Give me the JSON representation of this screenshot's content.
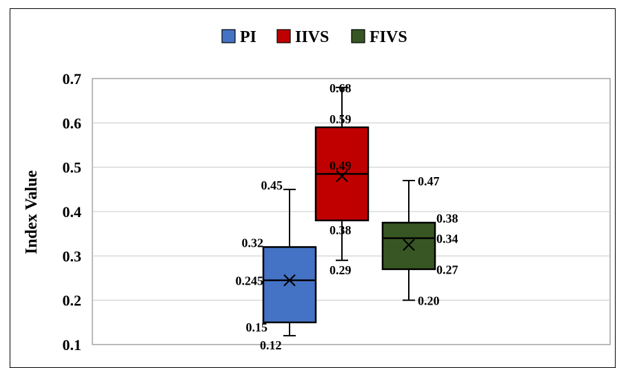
{
  "chart_data": {
    "type": "box",
    "title": "",
    "xlabel": "",
    "ylabel": "Index Value",
    "ylim": [
      0.1,
      0.7
    ],
    "yticks": [
      "0.1",
      "0.2",
      "0.3",
      "0.4",
      "0.5",
      "0.6",
      "0.7"
    ],
    "grid": "horizontal",
    "legend_position": "top",
    "series": [
      {
        "name": "PI",
        "color": "#4472C4",
        "min": 0.12,
        "q1": 0.15,
        "median": 0.245,
        "q3": 0.32,
        "max": 0.45,
        "mean": 0.245,
        "labels": {
          "min": "0.12",
          "q1": "0.15",
          "median": "0.245",
          "q3": "0.32",
          "max": "0.45"
        }
      },
      {
        "name": "IIVS",
        "color": "#C00000",
        "min": 0.29,
        "q1": 0.38,
        "median": 0.485,
        "q3": 0.59,
        "max": 0.68,
        "mean": 0.48,
        "labels": {
          "min": "0.29",
          "q1": "0.38",
          "median": "0.49",
          "q3": "0.59",
          "max": "0.68"
        }
      },
      {
        "name": "FIVS",
        "color": "#375623",
        "min": 0.2,
        "q1": 0.27,
        "median": 0.34,
        "q3": 0.375,
        "max": 0.47,
        "mean": 0.325,
        "labels": {
          "min": "0.20",
          "q1": "0.27",
          "median": "0.34",
          "q3": "0.38",
          "max": "0.47"
        }
      }
    ]
  }
}
